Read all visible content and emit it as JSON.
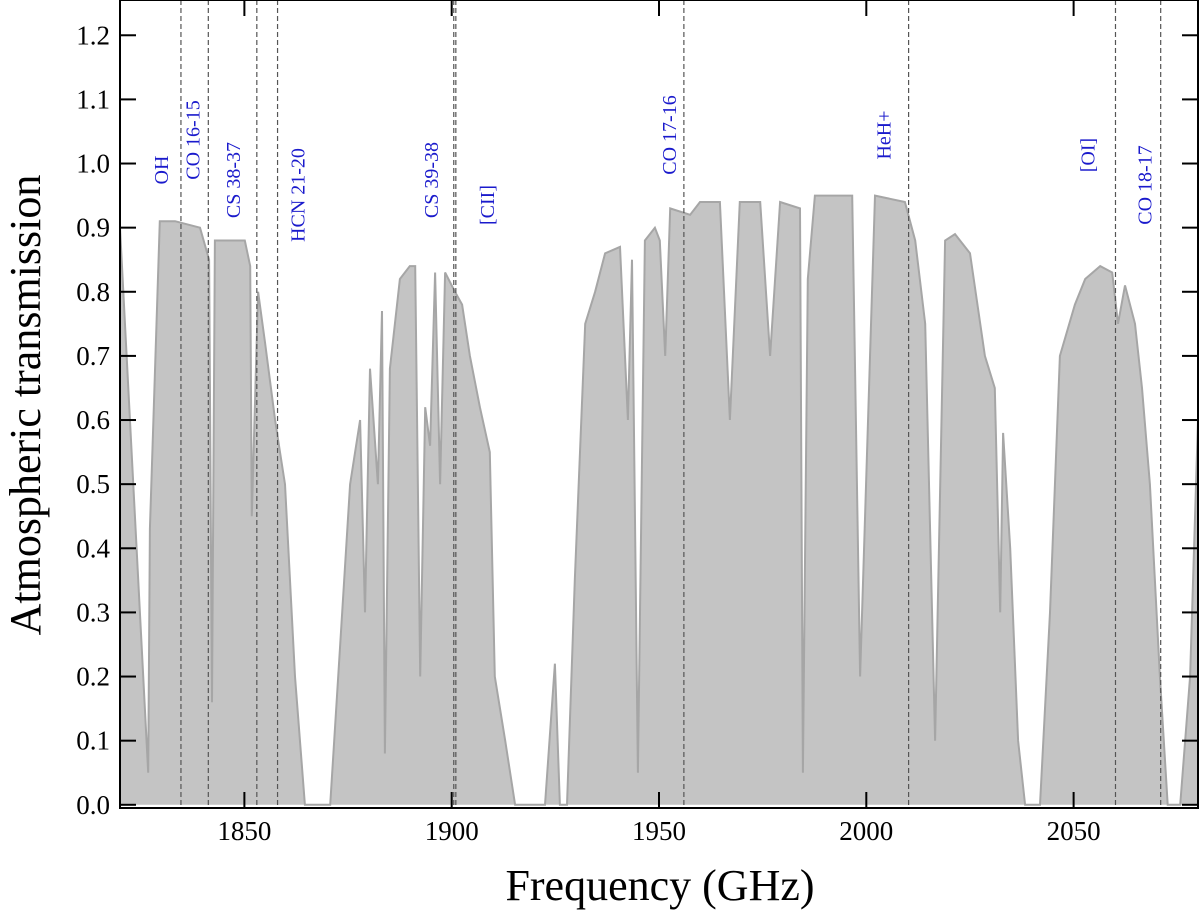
{
  "chart_data": {
    "type": "area",
    "xlabel": "Frequency (GHz)",
    "ylabel": "Atmospheric transmission",
    "xlim": [
      1820,
      2080
    ],
    "ylim": [
      -0.005,
      1.255
    ],
    "xticks": [
      1850,
      1900,
      1950,
      2000,
      2050
    ],
    "yticks": [
      {
        "value": 0,
        "label": "0.0"
      },
      {
        "value": 0.1,
        "label": "0.1"
      },
      {
        "value": 0.2,
        "label": "0.2"
      },
      {
        "value": 0.3,
        "label": "0.3"
      },
      {
        "value": 0.4,
        "label": "0.4"
      },
      {
        "value": 0.5,
        "label": "0.5"
      },
      {
        "value": 0.6,
        "label": "0.6"
      },
      {
        "value": 0.7,
        "label": "0.7"
      },
      {
        "value": 0.8,
        "label": "0.8"
      },
      {
        "value": 0.9,
        "label": "0.9"
      },
      {
        "value": 1,
        "label": "1.0"
      },
      {
        "value": 1.1,
        "label": "1.1"
      },
      {
        "value": 1.2,
        "label": "1.2"
      }
    ],
    "color": "#c4c4c4",
    "edge_color": "#a6a6a6",
    "x": [
      1820.0,
      1826.8,
      1827.2,
      1829.6,
      1833.3,
      1839.3,
      1841.5,
      1842.2,
      1842.9,
      1850.1,
      1851.4,
      1851.8,
      1853.3,
      1855.0,
      1857.4,
      1858.6,
      1859.8,
      1862.2,
      1864.6,
      1870.7,
      1873.1,
      1875.5,
      1877.9,
      1879.1,
      1880.3,
      1882.2,
      1883.2,
      1883.9,
      1885.1,
      1887.5,
      1889.9,
      1891.2,
      1892.4,
      1893.6,
      1894.8,
      1896.0,
      1897.2,
      1898.4,
      1900.8,
      1902.5,
      1904.4,
      1906.8,
      1909.2,
      1910.4,
      1912.9,
      1915.3,
      1922.5,
      1924.9,
      1926.1,
      1927.8,
      1929.7,
      1932.2,
      1934.6,
      1937.0,
      1940.6,
      1942.5,
      1943.5,
      1944.9,
      1946.6,
      1949.0,
      1950.2,
      1951.5,
      1952.7,
      1957.5,
      1959.9,
      1964.7,
      1967.1,
      1969.5,
      1974.4,
      1976.8,
      1979.2,
      1984.0,
      1984.7,
      1985.9,
      1987.6,
      1993.7,
      1996.6,
      1998.5,
      2002.1,
      2009.3,
      2011.8,
      2014.2,
      2016.6,
      2019.0,
      2021.4,
      2025.0,
      2028.6,
      2031.0,
      2032.3,
      2033.0,
      2034.7,
      2036.6,
      2038.3,
      2041.9,
      2044.3,
      2046.7,
      2050.3,
      2052.8,
      2056.4,
      2059.3,
      2060.7,
      2062.4,
      2064.8,
      2066.5,
      2068.4,
      2070.8,
      2072.7,
      2075.7,
      2078.1,
      2080.0
    ],
    "values": [
      0.9,
      0.05,
      0.43,
      0.91,
      0.91,
      0.9,
      0.85,
      0.16,
      0.88,
      0.88,
      0.84,
      0.45,
      0.8,
      0.72,
      0.6,
      0.55,
      0.5,
      0.2,
      0.0,
      0.0,
      0.25,
      0.5,
      0.6,
      0.3,
      0.68,
      0.5,
      0.77,
      0.08,
      0.68,
      0.82,
      0.84,
      0.84,
      0.2,
      0.62,
      0.56,
      0.83,
      0.5,
      0.83,
      0.8,
      0.78,
      0.7,
      0.62,
      0.55,
      0.2,
      0.1,
      0.0,
      0.0,
      0.22,
      0.0,
      0.0,
      0.35,
      0.75,
      0.8,
      0.86,
      0.87,
      0.6,
      0.85,
      0.05,
      0.88,
      0.9,
      0.88,
      0.7,
      0.93,
      0.92,
      0.94,
      0.94,
      0.6,
      0.94,
      0.94,
      0.7,
      0.94,
      0.93,
      0.05,
      0.82,
      0.95,
      0.95,
      0.95,
      0.2,
      0.95,
      0.94,
      0.88,
      0.75,
      0.1,
      0.88,
      0.89,
      0.86,
      0.7,
      0.65,
      0.3,
      0.58,
      0.4,
      0.1,
      0.0,
      0.0,
      0.3,
      0.7,
      0.78,
      0.82,
      0.84,
      0.83,
      0.75,
      0.81,
      0.75,
      0.65,
      0.5,
      0.2,
      0.0,
      0.0,
      0.2,
      0.6
    ],
    "lines": [
      {
        "name": "OH",
        "x": 1834.7
      },
      {
        "name": "CO 16-15",
        "x": 1841.3
      },
      {
        "name": "CS 38-37",
        "x": 1853.0
      },
      {
        "name": "HCN 21-20",
        "x": 1858.0
      },
      {
        "name": "CS 39-38",
        "x": 1901.0
      },
      {
        "name": "[CII]",
        "x": 1900.5
      },
      {
        "name": "CO 17-16",
        "x": 1956.0
      },
      {
        "name": "HeH+",
        "x": 2010.2
      },
      {
        "name": "[OI]",
        "x": 2060.1
      },
      {
        "name": "CO 18-17",
        "x": 2071.0
      }
    ]
  }
}
